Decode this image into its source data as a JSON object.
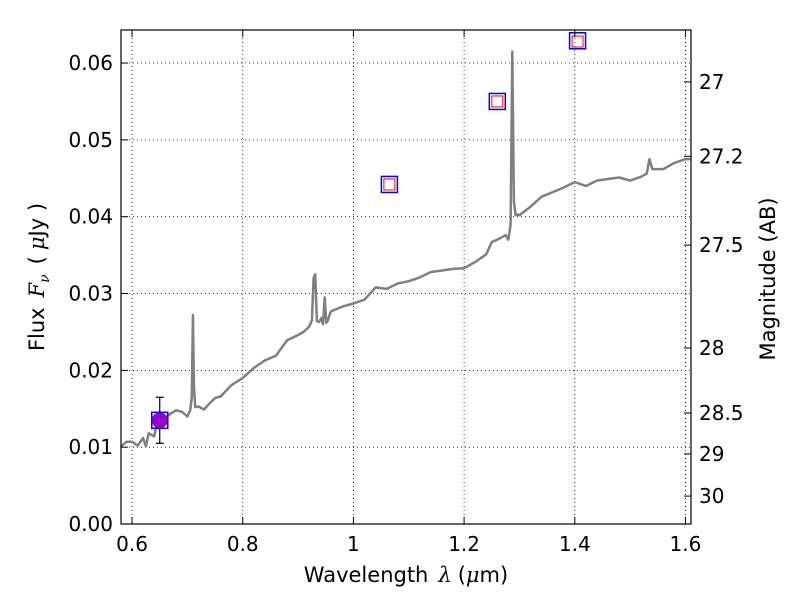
{
  "chart_data": {
    "type": "line",
    "xlabel": "Wavelength",
    "xlabel_symbol": "λ",
    "xlabel_unit_open": "(",
    "xlabel_unit_mu": "μ",
    "xlabel_unit_rest": "m)",
    "ylabel": "Flux",
    "ylabel_symbol": "F",
    "ylabel_subscript": "ν",
    "ylabel_unit_open": "(",
    "ylabel_unit_mu": "μ",
    "ylabel_unit_rest": "Jy )",
    "y2label": "Magnitude (AB)",
    "xlim": [
      0.58,
      1.61
    ],
    "ylim": [
      0.0,
      0.0643
    ],
    "grid": true,
    "x_ticks": [
      {
        "value": 0.6,
        "label": "0.6"
      },
      {
        "value": 0.8,
        "label": "0.8"
      },
      {
        "value": 1.0,
        "label": "1"
      },
      {
        "value": 1.2,
        "label": "1.2"
      },
      {
        "value": 1.4,
        "label": "1.4"
      },
      {
        "value": 1.6,
        "label": "1.6"
      }
    ],
    "y_ticks": [
      {
        "value": 0.0,
        "label": "0.00"
      },
      {
        "value": 0.01,
        "label": "0.01"
      },
      {
        "value": 0.02,
        "label": "0.02"
      },
      {
        "value": 0.03,
        "label": "0.03"
      },
      {
        "value": 0.04,
        "label": "0.04"
      },
      {
        "value": 0.05,
        "label": "0.05"
      },
      {
        "value": 0.06,
        "label": "0.06"
      }
    ],
    "mag_ticks": [
      {
        "mag": 27.0,
        "label": "27"
      },
      {
        "mag": 27.2,
        "label": "27.2"
      },
      {
        "mag": 27.5,
        "label": "27.5"
      },
      {
        "mag": 28.0,
        "label": "28"
      },
      {
        "mag": 28.5,
        "label": "28.5"
      },
      {
        "mag": 29.0,
        "label": "29"
      },
      {
        "mag": 30.0,
        "label": "30"
      }
    ],
    "series": [
      {
        "kind": "spectrum",
        "color": "#808080",
        "x": [
          0.58,
          0.59,
          0.6,
          0.61,
          0.62,
          0.625,
          0.63,
          0.64,
          0.645,
          0.65,
          0.66,
          0.67,
          0.68,
          0.69,
          0.7,
          0.705,
          0.708,
          0.71,
          0.712,
          0.714,
          0.72,
          0.73,
          0.74,
          0.75,
          0.76,
          0.78,
          0.8,
          0.82,
          0.84,
          0.86,
          0.88,
          0.9,
          0.91,
          0.92,
          0.925,
          0.928,
          0.931,
          0.934,
          0.938,
          0.942,
          0.945,
          0.948,
          0.951,
          0.954,
          0.958,
          0.96,
          0.98,
          1.0,
          1.02,
          1.04,
          1.06,
          1.08,
          1.1,
          1.12,
          1.14,
          1.16,
          1.18,
          1.2,
          1.22,
          1.24,
          1.25,
          1.26,
          1.27,
          1.275,
          1.28,
          1.284,
          1.287,
          1.29,
          1.293,
          1.296,
          1.3,
          1.32,
          1.34,
          1.36,
          1.38,
          1.4,
          1.42,
          1.44,
          1.46,
          1.48,
          1.5,
          1.52,
          1.53,
          1.535,
          1.54,
          1.56,
          1.58,
          1.6,
          1.61
        ],
        "y": [
          0.0101,
          0.0107,
          0.0107,
          0.0102,
          0.0112,
          0.0101,
          0.0118,
          0.0114,
          0.0132,
          0.0128,
          0.0138,
          0.0144,
          0.0148,
          0.0146,
          0.014,
          0.0148,
          0.0165,
          0.0272,
          0.0178,
          0.0152,
          0.0153,
          0.0149,
          0.0157,
          0.0164,
          0.0166,
          0.0181,
          0.019,
          0.0203,
          0.0213,
          0.0219,
          0.0239,
          0.0246,
          0.025,
          0.0257,
          0.0265,
          0.032,
          0.0325,
          0.0264,
          0.0263,
          0.0268,
          0.026,
          0.0295,
          0.0262,
          0.0265,
          0.0275,
          0.0277,
          0.0283,
          0.0287,
          0.0292,
          0.0308,
          0.0306,
          0.0313,
          0.0316,
          0.0321,
          0.0328,
          0.033,
          0.0332,
          0.0333,
          0.0341,
          0.0351,
          0.0367,
          0.037,
          0.0374,
          0.0376,
          0.037,
          0.039,
          0.0615,
          0.042,
          0.0402,
          0.0403,
          0.0402,
          0.0413,
          0.0426,
          0.0432,
          0.0438,
          0.0445,
          0.044,
          0.0447,
          0.0449,
          0.0451,
          0.0447,
          0.0452,
          0.0456,
          0.0475,
          0.0462,
          0.0462,
          0.047,
          0.0475,
          0.0475
        ]
      },
      {
        "kind": "error-point",
        "name": "",
        "color": "#9900cc",
        "x": 0.65,
        "y": 0.0135,
        "yerr": 0.003
      },
      {
        "kind": "blue-squares",
        "name": "",
        "color": "#0000ff",
        "x": [
          0.65,
          1.065,
          1.26,
          1.405
        ],
        "y": [
          0.0135,
          0.0442,
          0.055,
          0.0629
        ]
      },
      {
        "kind": "red-squares",
        "name": "",
        "color": "#ff0000",
        "x": [
          1.065,
          1.26,
          1.405
        ],
        "y": [
          0.0442,
          0.055,
          0.0628
        ]
      }
    ]
  }
}
